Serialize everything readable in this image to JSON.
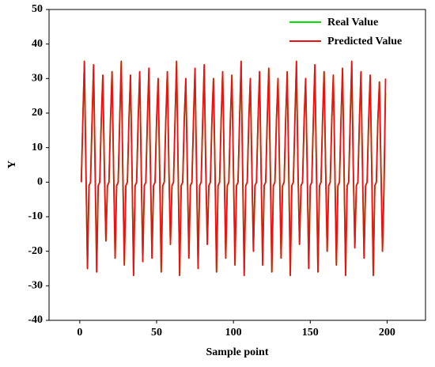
{
  "chart_data": {
    "type": "line",
    "xlabel": "Sample point",
    "ylabel": "Y",
    "x": [
      1,
      2,
      3,
      4,
      5,
      6,
      7,
      8,
      9,
      10,
      11,
      12,
      13,
      14,
      15,
      16,
      17,
      18,
      19,
      20,
      21,
      22,
      23,
      24,
      25,
      26,
      27,
      28,
      29,
      30,
      31,
      32,
      33,
      34,
      35,
      36,
      37,
      38,
      39,
      40,
      41,
      42,
      43,
      44,
      45,
      46,
      47,
      48,
      49,
      50,
      51,
      52,
      53,
      54,
      55,
      56,
      57,
      58,
      59,
      60,
      61,
      62,
      63,
      64,
      65,
      66,
      67,
      68,
      69,
      70,
      71,
      72,
      73,
      74,
      75,
      76,
      77,
      78,
      79,
      80,
      81,
      82,
      83,
      84,
      85,
      86,
      87,
      88,
      89,
      90,
      91,
      92,
      93,
      94,
      95,
      96,
      97,
      98,
      99,
      100,
      101,
      102,
      103,
      104,
      105,
      106,
      107,
      108,
      109,
      110,
      111,
      112,
      113,
      114,
      115,
      116,
      117,
      118,
      119,
      120,
      121,
      122,
      123,
      124,
      125,
      126,
      127,
      128,
      129,
      130,
      131,
      132,
      133,
      134,
      135,
      136,
      137,
      138,
      139,
      140,
      141,
      142,
      143,
      144,
      145,
      146,
      147,
      148,
      149,
      150,
      151,
      152,
      153,
      154,
      155,
      156,
      157,
      158,
      159,
      160,
      161,
      162,
      163,
      164,
      165,
      166,
      167,
      168,
      169,
      170,
      171,
      172,
      173,
      174,
      175,
      176,
      177,
      178,
      179,
      180,
      181,
      182,
      183,
      184,
      185,
      186,
      187,
      188,
      189,
      190,
      191,
      192,
      193,
      194,
      195,
      196,
      197,
      198,
      199
    ],
    "series": [
      {
        "name": "Real Value",
        "color": "#00e000",
        "values": [
          0,
          18,
          35,
          4,
          -25,
          -1,
          0,
          18,
          34,
          2,
          -26,
          -1,
          0,
          18,
          31,
          4,
          -17,
          -1,
          0,
          18,
          32,
          4,
          -22,
          -1,
          0,
          18,
          35,
          2,
          -24,
          -1,
          0,
          18,
          31,
          4,
          -27,
          -1,
          0,
          18,
          32,
          4,
          -23,
          -1,
          0,
          18,
          33,
          4,
          -22,
          -1,
          0,
          18,
          30,
          2,
          -26,
          -1,
          0,
          18,
          32,
          4,
          -18,
          -1,
          0,
          18,
          35,
          4,
          -27,
          -1,
          0,
          18,
          30,
          4,
          -22,
          -1,
          0,
          18,
          33,
          2,
          -25,
          -1,
          0,
          18,
          34,
          4,
          -18,
          -1,
          0,
          18,
          30,
          4,
          -26,
          -1,
          0,
          18,
          32,
          4,
          -22,
          -1,
          0,
          18,
          31,
          4,
          -24,
          -1,
          0,
          18,
          35,
          2,
          -27,
          -1,
          0,
          18,
          30,
          4,
          -20,
          -1,
          0,
          18,
          32,
          4,
          -24,
          -1,
          0,
          18,
          33,
          4,
          -26,
          -1,
          0,
          18,
          30,
          4,
          -22,
          -1,
          0,
          18,
          32,
          2,
          -27,
          -1,
          0,
          18,
          35,
          4,
          -18,
          -1,
          0,
          18,
          30,
          4,
          -25,
          -1,
          0,
          18,
          34,
          4,
          -26,
          -1,
          0,
          18,
          32,
          4,
          -20,
          -1,
          0,
          18,
          31,
          4,
          -24,
          -1,
          0,
          18,
          33,
          2,
          -27,
          -1,
          0,
          18,
          35,
          4,
          -19,
          -1,
          0,
          18,
          32,
          4,
          -22,
          -1,
          0,
          18,
          31,
          4,
          -27,
          -1,
          0,
          18,
          29,
          4,
          -20,
          -1,
          26
        ]
      },
      {
        "name": "Predicted Value",
        "color": "#ee1111",
        "values": [
          0,
          18,
          35,
          4,
          -25,
          -1,
          0,
          18,
          34,
          4,
          -26,
          -1,
          0,
          18,
          31,
          4,
          -17,
          -1,
          0,
          18,
          32,
          4,
          -22,
          -1,
          0,
          18,
          35,
          4,
          -24,
          -1,
          0,
          18,
          31,
          4,
          -27,
          -1,
          0,
          18,
          32,
          4,
          -23,
          -1,
          0,
          18,
          33,
          4,
          -22,
          -1,
          0,
          18,
          30,
          4,
          -26,
          -1,
          0,
          18,
          32,
          4,
          -18,
          -1,
          0,
          18,
          35,
          4,
          -27,
          -1,
          0,
          18,
          30,
          4,
          -22,
          -1,
          0,
          18,
          33,
          4,
          -25,
          -1,
          0,
          18,
          34,
          4,
          -18,
          -1,
          0,
          18,
          30,
          4,
          -26,
          -1,
          0,
          18,
          32,
          4,
          -22,
          -1,
          0,
          18,
          31,
          4,
          -24,
          -1,
          0,
          18,
          35,
          4,
          -27,
          -1,
          0,
          18,
          30,
          4,
          -20,
          -1,
          0,
          18,
          32,
          4,
          -24,
          -1,
          0,
          18,
          33,
          4,
          -26,
          -1,
          0,
          18,
          30,
          4,
          -22,
          -1,
          0,
          18,
          32,
          4,
          -27,
          -1,
          0,
          18,
          35,
          4,
          -18,
          -1,
          0,
          18,
          30,
          4,
          -25,
          -1,
          0,
          18,
          34,
          4,
          -26,
          -1,
          0,
          18,
          32,
          4,
          -20,
          -1,
          0,
          18,
          31,
          4,
          -24,
          -1,
          0,
          18,
          33,
          4,
          -27,
          -1,
          0,
          18,
          35,
          4,
          -19,
          -1,
          0,
          18,
          32,
          4,
          -22,
          -1,
          0,
          18,
          31,
          4,
          -27,
          -1,
          0,
          18,
          29,
          4,
          -20,
          -1,
          30
        ]
      }
    ],
    "xlim": [
      -20,
      225
    ],
    "xticks": [
      0,
      50,
      100,
      150,
      200
    ],
    "ylim": [
      -40,
      50
    ],
    "yticks": [
      -40,
      -30,
      -20,
      -10,
      0,
      10,
      20,
      30,
      40,
      50
    ],
    "grid": false,
    "legend": "upper right"
  }
}
